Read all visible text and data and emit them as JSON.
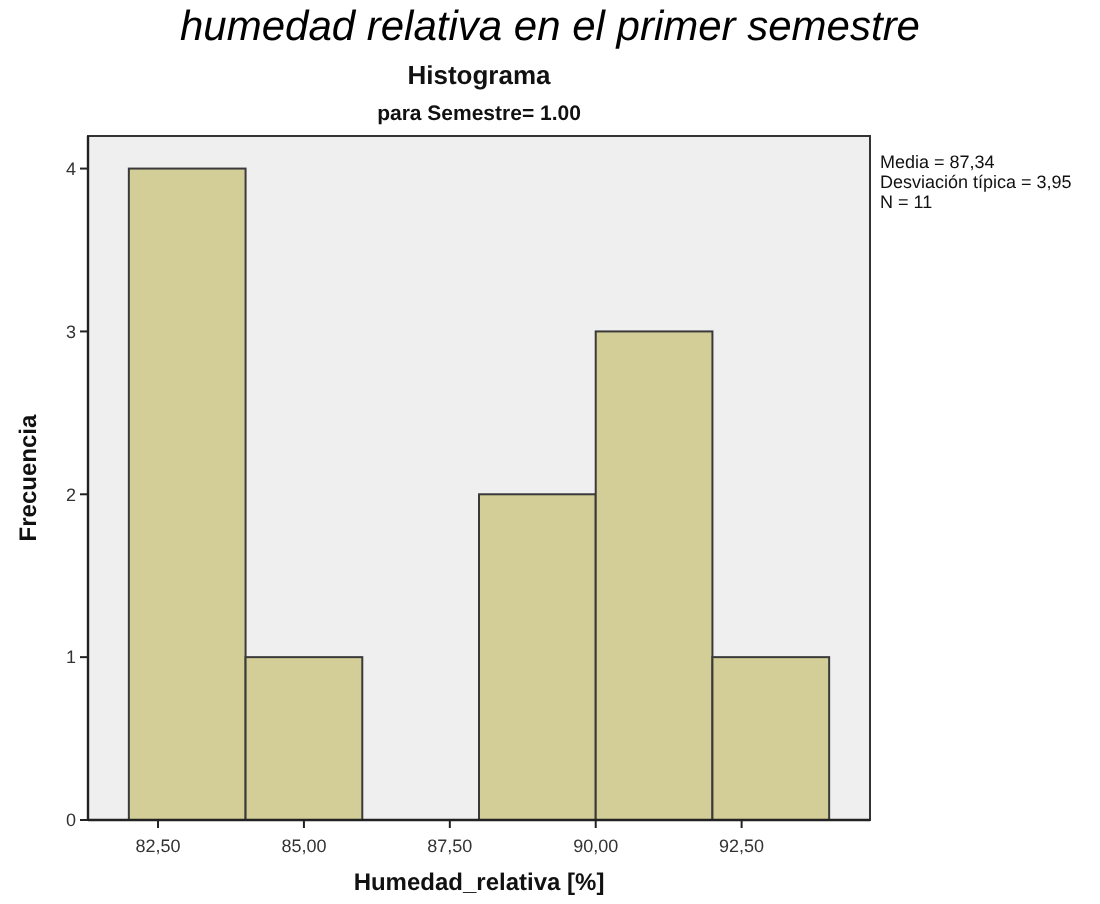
{
  "chart_data": {
    "type": "histogram",
    "title": "Histograma",
    "subtitle": "para Semestre= 1.00",
    "xlabel": "Humedad_relativa [%]",
    "ylabel": "Frecuencia",
    "annotations": [
      "humedad relativa en el primer semestre",
      "Media = 87,34",
      "Desviación típica = 3,95",
      "N = 11"
    ],
    "bins": [
      82,
      84,
      86,
      88,
      90,
      92,
      94
    ],
    "values": [
      4,
      1,
      0,
      2,
      3,
      1
    ],
    "color": "#d3ce97",
    "xlim": [
      81.3,
      94.7
    ],
    "xticks": [
      {
        "value": 82.5,
        "label": "82,50"
      },
      {
        "value": 85,
        "label": "85,00"
      },
      {
        "value": 87.5,
        "label": "87,50"
      },
      {
        "value": 90,
        "label": "90,00"
      },
      {
        "value": 92.5,
        "label": "92,50"
      }
    ],
    "ylim": [
      0,
      4.2
    ],
    "yticks": [
      0,
      1,
      2,
      3,
      4
    ]
  }
}
